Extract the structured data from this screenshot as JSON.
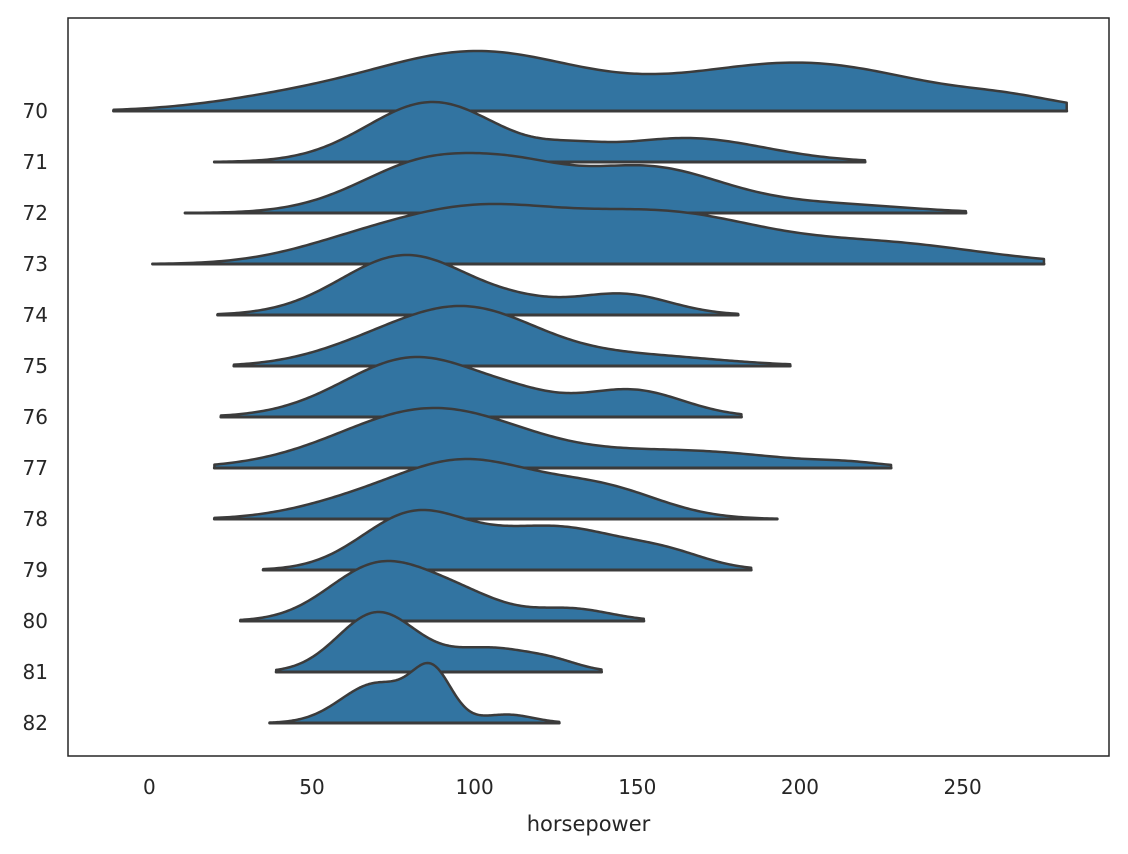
{
  "chart_data": {
    "type": "ridgeline",
    "xlabel": "horsepower",
    "ylabel": "",
    "title": "",
    "xlim": [
      -25,
      295
    ],
    "xticks": [
      0,
      50,
      100,
      150,
      200,
      250
    ],
    "grid": false,
    "legend": "none",
    "colors": {
      "fill": "#3274a1",
      "stroke": "#3b3b3b",
      "frame": "#262626"
    },
    "series": [
      {
        "name": "70",
        "range": [
          -11,
          282
        ],
        "peaks": [
          [
            100,
            1.0,
            32
          ],
          [
            200,
            0.83,
            38
          ],
          [
            42,
            0.18,
            25
          ],
          [
            265,
            0.12,
            15
          ]
        ]
      },
      {
        "name": "71",
        "range": [
          20,
          220
        ],
        "peaks": [
          [
            87,
            1.0,
            20
          ],
          [
            165,
            0.4,
            24
          ],
          [
            130,
            0.12,
            10
          ]
        ]
      },
      {
        "name": "72",
        "range": [
          11,
          251
        ],
        "peaks": [
          [
            88,
            1.0,
            22
          ],
          [
            152,
            0.85,
            24
          ],
          [
            115,
            0.3,
            14
          ],
          [
            210,
            0.15,
            24
          ]
        ]
      },
      {
        "name": "73",
        "range": [
          1,
          275
        ],
        "peaks": [
          [
            100,
            1.0,
            28
          ],
          [
            160,
            0.86,
            28
          ],
          [
            60,
            0.2,
            20
          ],
          [
            225,
            0.38,
            30
          ]
        ]
      },
      {
        "name": "74",
        "range": [
          21,
          181
        ],
        "peaks": [
          [
            79,
            1.0,
            20
          ],
          [
            145,
            0.35,
            15
          ],
          [
            115,
            0.12,
            12
          ]
        ]
      },
      {
        "name": "75",
        "range": [
          26,
          197
        ],
        "peaks": [
          [
            97,
            1.0,
            22
          ],
          [
            150,
            0.18,
            25
          ],
          [
            65,
            0.2,
            18
          ]
        ]
      },
      {
        "name": "76",
        "range": [
          22,
          182
        ],
        "peaks": [
          [
            82,
            1.0,
            22
          ],
          [
            148,
            0.45,
            16
          ],
          [
            115,
            0.15,
            12
          ]
        ]
      },
      {
        "name": "77",
        "range": [
          20,
          228
        ],
        "peaks": [
          [
            87,
            1.0,
            28
          ],
          [
            165,
            0.28,
            30
          ],
          [
            215,
            0.05,
            10
          ]
        ]
      },
      {
        "name": "78",
        "range": [
          20,
          193
        ],
        "peaks": [
          [
            97,
            1.0,
            22
          ],
          [
            140,
            0.48,
            18
          ],
          [
            60,
            0.2,
            18
          ]
        ]
      },
      {
        "name": "79",
        "range": [
          35,
          185
        ],
        "peaks": [
          [
            81,
            1.0,
            16
          ],
          [
            125,
            0.8,
            22
          ],
          [
            160,
            0.2,
            12
          ]
        ]
      },
      {
        "name": "80",
        "range": [
          28,
          152
        ],
        "peaks": [
          [
            70,
            1.0,
            15
          ],
          [
            95,
            0.45,
            14
          ],
          [
            130,
            0.22,
            12
          ]
        ]
      },
      {
        "name": "81",
        "range": [
          39,
          139
        ],
        "peaks": [
          [
            70,
            1.0,
            12
          ],
          [
            105,
            0.4,
            14
          ],
          [
            125,
            0.1,
            8
          ]
        ]
      },
      {
        "name": "82",
        "range": [
          37,
          126
        ],
        "peaks": [
          [
            70,
            0.85,
            11
          ],
          [
            87,
            1.0,
            6
          ],
          [
            110,
            0.18,
            8
          ]
        ]
      }
    ]
  }
}
